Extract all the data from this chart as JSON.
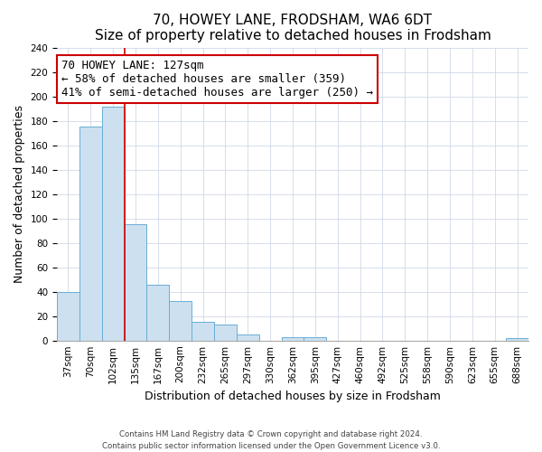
{
  "title": "70, HOWEY LANE, FRODSHAM, WA6 6DT",
  "subtitle": "Size of property relative to detached houses in Frodsham",
  "xlabel": "Distribution of detached houses by size in Frodsham",
  "ylabel": "Number of detached properties",
  "bin_labels": [
    "37sqm",
    "70sqm",
    "102sqm",
    "135sqm",
    "167sqm",
    "200sqm",
    "232sqm",
    "265sqm",
    "297sqm",
    "330sqm",
    "362sqm",
    "395sqm",
    "427sqm",
    "460sqm",
    "492sqm",
    "525sqm",
    "558sqm",
    "590sqm",
    "623sqm",
    "655sqm",
    "688sqm"
  ],
  "bar_heights": [
    40,
    175,
    192,
    95,
    46,
    32,
    15,
    13,
    5,
    0,
    3,
    3,
    0,
    0,
    0,
    0,
    0,
    0,
    0,
    0,
    2
  ],
  "bar_color": "#cce0f0",
  "bar_edge_color": "#6aadd5",
  "vline_x": 3,
  "vline_color": "#cc0000",
  "annotation_title": "70 HOWEY LANE: 127sqm",
  "annotation_line1": "← 58% of detached houses are smaller (359)",
  "annotation_line2": "41% of semi-detached houses are larger (250) →",
  "annotation_box_color": "#ffffff",
  "annotation_box_edge": "#cc0000",
  "ylim": [
    0,
    240
  ],
  "yticks": [
    0,
    20,
    40,
    60,
    80,
    100,
    120,
    140,
    160,
    180,
    200,
    220,
    240
  ],
  "footnote1": "Contains HM Land Registry data © Crown copyright and database right 2024.",
  "footnote2": "Contains public sector information licensed under the Open Government Licence v3.0.",
  "title_fontsize": 11,
  "subtitle_fontsize": 9.5,
  "label_fontsize": 9,
  "tick_fontsize": 7.5,
  "annot_fontsize": 9
}
